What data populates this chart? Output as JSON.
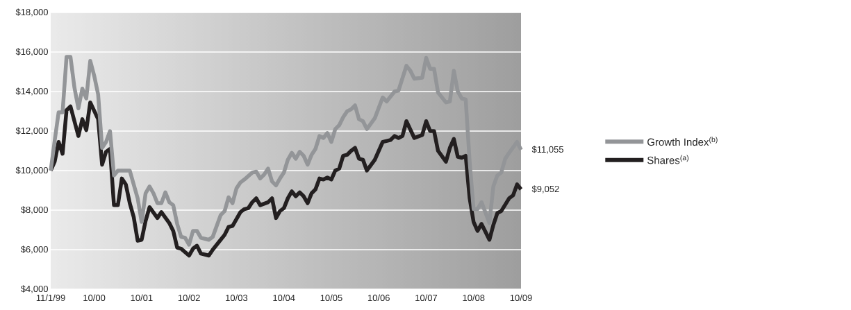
{
  "chart_data": {
    "type": "line",
    "xlim": [
      "1999-11",
      "2009-10"
    ],
    "xticks": [
      {
        "value": "1999-11",
        "label": "11/1/99"
      },
      {
        "value": "2000-10",
        "label": "10/00"
      },
      {
        "value": "2001-10",
        "label": "10/01"
      },
      {
        "value": "2002-10",
        "label": "10/02"
      },
      {
        "value": "2003-10",
        "label": "10/03"
      },
      {
        "value": "2004-10",
        "label": "10/04"
      },
      {
        "value": "2005-10",
        "label": "10/05"
      },
      {
        "value": "2006-10",
        "label": "10/06"
      },
      {
        "value": "2007-10",
        "label": "10/07"
      },
      {
        "value": "2008-10",
        "label": "10/08"
      },
      {
        "value": "2009-10",
        "label": "10/09"
      }
    ],
    "ylim": [
      4000,
      18000
    ],
    "yticks": [
      {
        "value": 4000,
        "label": "$4,000"
      },
      {
        "value": 6000,
        "label": "$6,000"
      },
      {
        "value": 8000,
        "label": "$8,000"
      },
      {
        "value": 10000,
        "label": "$10,000"
      },
      {
        "value": 12000,
        "label": "$12,000"
      },
      {
        "value": 14000,
        "label": "$14,000"
      },
      {
        "value": 16000,
        "label": "$16,000"
      },
      {
        "value": 18000,
        "label": "$18,000"
      }
    ],
    "grid": "y",
    "legend": "right",
    "marker": "none",
    "line_style": "solid",
    "annotations": [
      {
        "text": "$11,055",
        "x": "2009-10",
        "y": 11055
      },
      {
        "text": "$9,052",
        "x": "2009-10",
        "y": 9052
      }
    ],
    "series": [
      {
        "name": "Growth Index$^{(b)}$",
        "color": "#939598",
        "x": [
          "1999-11",
          "1999-12",
          "2000-01",
          "2000-02",
          "2000-03",
          "2000-04",
          "2000-05",
          "2000-06",
          "2000-07",
          "2000-08",
          "2000-09",
          "2000-10",
          "2000-11",
          "2000-12",
          "2001-01",
          "2001-02",
          "2001-03",
          "2001-04",
          "2001-07",
          "2001-08",
          "2001-09",
          "2001-10",
          "2001-11",
          "2001-12",
          "2002-01",
          "2002-02",
          "2002-03",
          "2002-04",
          "2002-05",
          "2002-06",
          "2002-07",
          "2002-08",
          "2002-09",
          "2002-10",
          "2002-11",
          "2002-12",
          "2003-01",
          "2003-03",
          "2003-04",
          "2003-05",
          "2003-06",
          "2003-07",
          "2003-08",
          "2003-09",
          "2003-10",
          "2003-11",
          "2003-12",
          "2004-02",
          "2004-03",
          "2004-04",
          "2004-05",
          "2004-06",
          "2004-07",
          "2004-08",
          "2004-09",
          "2004-10",
          "2004-11",
          "2004-12",
          "2005-01",
          "2005-02",
          "2005-03",
          "2005-04",
          "2005-05",
          "2005-06",
          "2005-07",
          "2005-08",
          "2005-09",
          "2005-10",
          "2005-11",
          "2005-12",
          "2006-01",
          "2006-02",
          "2006-03",
          "2006-04",
          "2006-05",
          "2006-06",
          "2006-07",
          "2006-09",
          "2006-11",
          "2006-12",
          "2007-02",
          "2007-03",
          "2007-05",
          "2007-06",
          "2007-07",
          "2007-09",
          "2007-10",
          "2007-11",
          "2007-12",
          "2008-01",
          "2008-03",
          "2008-04",
          "2008-05",
          "2008-06",
          "2008-07",
          "2008-08",
          "2008-09",
          "2008-10",
          "2008-11",
          "2008-12",
          "2009-02",
          "2009-03",
          "2009-04",
          "2009-05",
          "2009-06",
          "2009-07",
          "2009-09",
          "2009-10"
        ],
        "values": [
          10000,
          11500,
          12950,
          12950,
          15750,
          15750,
          14200,
          13150,
          14150,
          13650,
          15550,
          14800,
          13850,
          11150,
          11450,
          12000,
          9750,
          10000,
          10000,
          9300,
          8600,
          7400,
          8850,
          9200,
          8850,
          8350,
          8350,
          8900,
          8400,
          8250,
          7300,
          6650,
          6600,
          6250,
          6950,
          6950,
          6600,
          6500,
          6650,
          7200,
          7750,
          7950,
          8650,
          8350,
          9100,
          9400,
          9550,
          9900,
          9950,
          9600,
          9800,
          10100,
          9450,
          9250,
          9600,
          9900,
          10550,
          10900,
          10600,
          10950,
          10750,
          10300,
          10800,
          11100,
          11750,
          11650,
          11900,
          11450,
          12100,
          12300,
          12700,
          13000,
          13100,
          13300,
          12600,
          12500,
          12100,
          12650,
          13700,
          13500,
          14000,
          14050,
          15300,
          15050,
          14650,
          14700,
          15700,
          15150,
          15150,
          13950,
          13450,
          13500,
          15050,
          14000,
          13650,
          13600,
          10450,
          8050,
          8050,
          8400,
          7350,
          9200,
          9750,
          9900,
          10600,
          10900,
          11450,
          11055
        ]
      },
      {
        "name": "Shares$^{(a)}$",
        "color": "#231f20",
        "x": [
          "1999-11",
          "1999-12",
          "2000-01",
          "2000-02",
          "2000-03",
          "2000-04",
          "2000-06",
          "2000-07",
          "2000-08",
          "2000-09",
          "2000-11",
          "2000-12",
          "2001-01",
          "2001-02",
          "2001-03",
          "2001-04",
          "2001-05",
          "2001-06",
          "2001-07",
          "2001-08",
          "2001-09",
          "2001-10",
          "2001-11",
          "2001-12",
          "2002-02",
          "2002-03",
          "2002-05",
          "2002-06",
          "2002-07",
          "2002-08",
          "2002-10",
          "2002-11",
          "2002-12",
          "2003-01",
          "2003-03",
          "2003-04",
          "2003-06",
          "2003-07",
          "2003-08",
          "2003-09",
          "2003-11",
          "2003-12",
          "2004-01",
          "2004-02",
          "2004-03",
          "2004-04",
          "2004-06",
          "2004-07",
          "2004-08",
          "2004-09",
          "2004-10",
          "2004-11",
          "2004-12",
          "2005-01",
          "2005-02",
          "2005-03",
          "2005-04",
          "2005-05",
          "2005-06",
          "2005-07",
          "2005-08",
          "2005-09",
          "2005-10",
          "2005-11",
          "2005-12",
          "2006-01",
          "2006-02",
          "2006-03",
          "2006-04",
          "2006-05",
          "2006-06",
          "2006-07",
          "2006-09",
          "2006-11",
          "2007-01",
          "2007-02",
          "2007-03",
          "2007-04",
          "2007-05",
          "2007-07",
          "2007-09",
          "2007-10",
          "2007-11",
          "2007-12",
          "2008-01",
          "2008-03",
          "2008-04",
          "2008-05",
          "2008-06",
          "2008-07",
          "2008-08",
          "2008-09",
          "2008-10",
          "2008-11",
          "2008-12",
          "2009-01",
          "2009-02",
          "2009-03",
          "2009-04",
          "2009-05",
          "2009-07",
          "2009-08",
          "2009-09",
          "2009-10"
        ],
        "values": [
          10000,
          10450,
          11450,
          10850,
          13050,
          13250,
          11750,
          12600,
          12050,
          13450,
          12600,
          10300,
          10950,
          11100,
          8250,
          8250,
          9600,
          9300,
          8350,
          7650,
          6450,
          6500,
          7450,
          8150,
          7600,
          7900,
          7350,
          6950,
          6100,
          6050,
          5700,
          6050,
          6200,
          5800,
          5700,
          6000,
          6500,
          6750,
          7150,
          7200,
          7900,
          8050,
          8100,
          8400,
          8600,
          8250,
          8400,
          8600,
          7600,
          7950,
          8100,
          8600,
          8950,
          8700,
          8900,
          8700,
          8350,
          8850,
          9050,
          9600,
          9550,
          9650,
          9550,
          10000,
          10100,
          10750,
          10800,
          11000,
          11150,
          10600,
          10550,
          10000,
          10550,
          11450,
          11550,
          11750,
          11650,
          11750,
          12500,
          11650,
          11800,
          12500,
          12000,
          12000,
          11000,
          10450,
          11150,
          11600,
          10700,
          10650,
          10750,
          8600,
          7400,
          6950,
          7300,
          6900,
          6500,
          7250,
          7850,
          7950,
          8600,
          8750,
          9300,
          9052
        ]
      }
    ]
  }
}
